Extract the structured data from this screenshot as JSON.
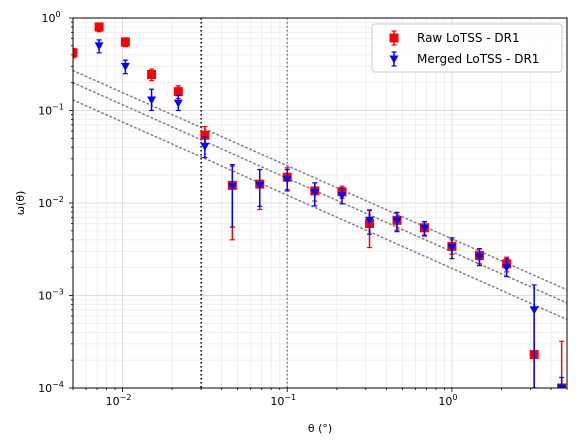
{
  "chart_data": {
    "type": "scatter",
    "title": "",
    "xlabel": "θ (°)",
    "ylabel": "ω(θ)",
    "xscale": "log",
    "yscale": "log",
    "xlim": [
      0.005,
      5
    ],
    "ylim": [
      0.0001,
      1
    ],
    "grid": true,
    "legend_position": "top-right",
    "x_ticks": [
      {
        "value": 0.01,
        "base": "10",
        "exp": "−2"
      },
      {
        "value": 0.1,
        "base": "10",
        "exp": "−1"
      },
      {
        "value": 1,
        "base": "10",
        "exp": "0"
      }
    ],
    "y_ticks": [
      {
        "value": 0.0001,
        "base": "10",
        "exp": "−4"
      },
      {
        "value": 0.001,
        "base": "10",
        "exp": "−3"
      },
      {
        "value": 0.01,
        "base": "10",
        "exp": "−2"
      },
      {
        "value": 0.1,
        "base": "10",
        "exp": "−1"
      },
      {
        "value": 1,
        "base": "10",
        "exp": "0"
      }
    ],
    "vertical_lines": [
      {
        "x": 0.03,
        "style": "dotted",
        "color": "#000000"
      },
      {
        "x": 0.1,
        "style": "dotted",
        "color": "#808080"
      }
    ],
    "reference_lines": [
      {
        "x": [
          0.005,
          5
        ],
        "y": [
          0.27,
          0.00115
        ],
        "style": "dotted",
        "color": "#808080"
      },
      {
        "x": [
          0.005,
          5
        ],
        "y": [
          0.2,
          0.00083
        ],
        "style": "dotted",
        "color": "#808080"
      },
      {
        "x": [
          0.005,
          5
        ],
        "y": [
          0.13,
          0.00055
        ],
        "style": "dotted",
        "color": "#808080"
      }
    ],
    "series": [
      {
        "name": "Raw LoTSS - DR1",
        "color": "#ff0000",
        "errorbar_color": "#ff0000",
        "marker": "square",
        "points": [
          {
            "x": 0.005,
            "y": 0.42,
            "lo": 0.37,
            "hi": 0.47
          },
          {
            "x": 0.0072,
            "y": 0.8,
            "lo": 0.71,
            "hi": 0.88
          },
          {
            "x": 0.0104,
            "y": 0.55,
            "lo": 0.49,
            "hi": 0.61
          },
          {
            "x": 0.015,
            "y": 0.245,
            "lo": 0.21,
            "hi": 0.28
          },
          {
            "x": 0.0218,
            "y": 0.16,
            "lo": 0.135,
            "hi": 0.185
          },
          {
            "x": 0.0316,
            "y": 0.054,
            "lo": 0.043,
            "hi": 0.067
          },
          {
            "x": 0.0464,
            "y": 0.0155,
            "lo": 0.004,
            "hi": 0.025
          },
          {
            "x": 0.0681,
            "y": 0.016,
            "lo": 0.0085,
            "hi": 0.023
          },
          {
            "x": 0.1,
            "y": 0.019,
            "lo": 0.014,
            "hi": 0.024
          },
          {
            "x": 0.147,
            "y": 0.0135,
            "lo": 0.0105,
            "hi": 0.0165
          },
          {
            "x": 0.215,
            "y": 0.0132,
            "lo": 0.0112,
            "hi": 0.0152
          },
          {
            "x": 0.316,
            "y": 0.006,
            "lo": 0.0033,
            "hi": 0.0083
          },
          {
            "x": 0.464,
            "y": 0.0065,
            "lo": 0.0051,
            "hi": 0.0079
          },
          {
            "x": 0.681,
            "y": 0.0054,
            "lo": 0.0045,
            "hi": 0.0063
          },
          {
            "x": 1.0,
            "y": 0.0034,
            "lo": 0.0028,
            "hi": 0.004
          },
          {
            "x": 1.47,
            "y": 0.0027,
            "lo": 0.0022,
            "hi": 0.0032
          },
          {
            "x": 2.15,
            "y": 0.0022,
            "lo": 0.0018,
            "hi": 0.0026
          },
          {
            "x": 3.16,
            "y": 0.00023,
            "lo": 0.0001,
            "hi": 0.00075
          },
          {
            "x": 4.64,
            "y": 0.0001,
            "lo": 0.0001,
            "hi": 0.00032
          }
        ]
      },
      {
        "name": "Merged LoTSS - DR1",
        "color": "#0000ff",
        "errorbar_color": "#0000ff",
        "marker": "triangle-down",
        "points": [
          {
            "x": 0.0072,
            "y": 0.5,
            "lo": 0.42,
            "hi": 0.58
          },
          {
            "x": 0.0104,
            "y": 0.3,
            "lo": 0.25,
            "hi": 0.35
          },
          {
            "x": 0.015,
            "y": 0.13,
            "lo": 0.1,
            "hi": 0.17
          },
          {
            "x": 0.0218,
            "y": 0.12,
            "lo": 0.1,
            "hi": 0.145
          },
          {
            "x": 0.0316,
            "y": 0.041,
            "lo": 0.031,
            "hi": 0.052
          },
          {
            "x": 0.0464,
            "y": 0.015,
            "lo": 0.0055,
            "hi": 0.026
          },
          {
            "x": 0.0681,
            "y": 0.0155,
            "lo": 0.0092,
            "hi": 0.023
          },
          {
            "x": 0.1,
            "y": 0.018,
            "lo": 0.0135,
            "hi": 0.023
          },
          {
            "x": 0.147,
            "y": 0.013,
            "lo": 0.0093,
            "hi": 0.0165
          },
          {
            "x": 0.215,
            "y": 0.012,
            "lo": 0.0098,
            "hi": 0.0145
          },
          {
            "x": 0.316,
            "y": 0.0065,
            "lo": 0.0046,
            "hi": 0.0084
          },
          {
            "x": 0.464,
            "y": 0.0064,
            "lo": 0.0049,
            "hi": 0.0079
          },
          {
            "x": 0.681,
            "y": 0.0053,
            "lo": 0.0044,
            "hi": 0.0063
          },
          {
            "x": 1.0,
            "y": 0.0033,
            "lo": 0.0025,
            "hi": 0.0042
          },
          {
            "x": 1.47,
            "y": 0.0026,
            "lo": 0.0021,
            "hi": 0.0032
          },
          {
            "x": 2.15,
            "y": 0.002,
            "lo": 0.0016,
            "hi": 0.0025
          },
          {
            "x": 3.16,
            "y": 0.0007,
            "lo": 0.0001,
            "hi": 0.0013
          },
          {
            "x": 4.64,
            "y": 0.0001,
            "lo": 0.0001,
            "hi": 0.00013
          }
        ]
      }
    ]
  }
}
